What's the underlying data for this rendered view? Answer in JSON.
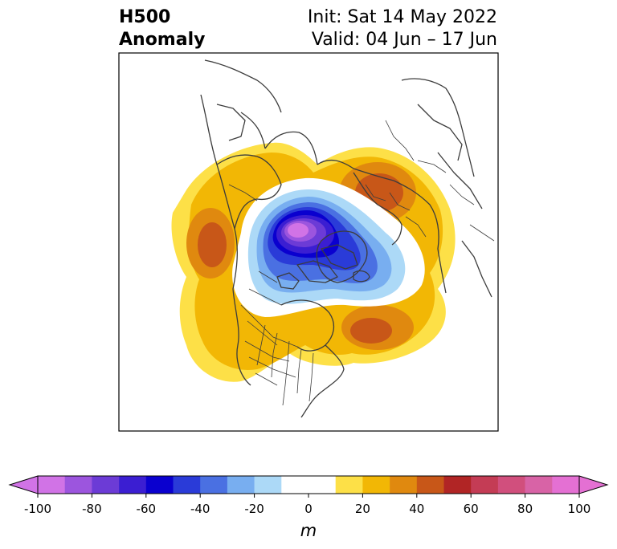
{
  "title": {
    "left_line1": "H500",
    "left_line2": "Anomaly",
    "right_line1": "Init: Sat 14 May 2022",
    "right_line2": "Valid: 04 Jun – 17 Jun"
  },
  "colorbar": {
    "unit": "m",
    "ticks": [
      "-100",
      "-80",
      "-60",
      "-40",
      "-20",
      "0",
      "20",
      "40",
      "60",
      "80",
      "100"
    ],
    "tick_values": [
      -100,
      -80,
      -60,
      -40,
      -20,
      0,
      20,
      40,
      60,
      80,
      100
    ],
    "bins": [
      -100,
      -90,
      -80,
      -70,
      -60,
      -50,
      -40,
      -30,
      -20,
      -10,
      10,
      20,
      30,
      40,
      50,
      60,
      70,
      80,
      90,
      100
    ],
    "colors": [
      "#d173e6",
      "#9c55de",
      "#6c3bd6",
      "#3b1ed2",
      "#0a00cf",
      "#2a3bd8",
      "#4a70e2",
      "#78aef0",
      "#acd9f7",
      "#ffffff",
      "#fde047",
      "#f2b705",
      "#e0890f",
      "#c85718",
      "#b12525",
      "#c43c55",
      "#d14f7d",
      "#d863a6",
      "#e470d3"
    ],
    "extend_low_color": "#d173e6",
    "extend_high_color": "#e470d3"
  },
  "map": {
    "projection": "north-polar stereographic",
    "region": "North America / Arctic",
    "anomaly_centers": [
      {
        "label": "negative",
        "value_m": -95,
        "location": "Arctic Ocean north of Alaska"
      },
      {
        "label": "positive",
        "value_m": 45,
        "location": "Gulf of Alaska"
      },
      {
        "label": "positive",
        "value_m": 50,
        "location": "Scandinavia / NW Russia"
      },
      {
        "label": "positive",
        "value_m": 50,
        "location": "Eastern Canada / Atlantic"
      }
    ]
  }
}
